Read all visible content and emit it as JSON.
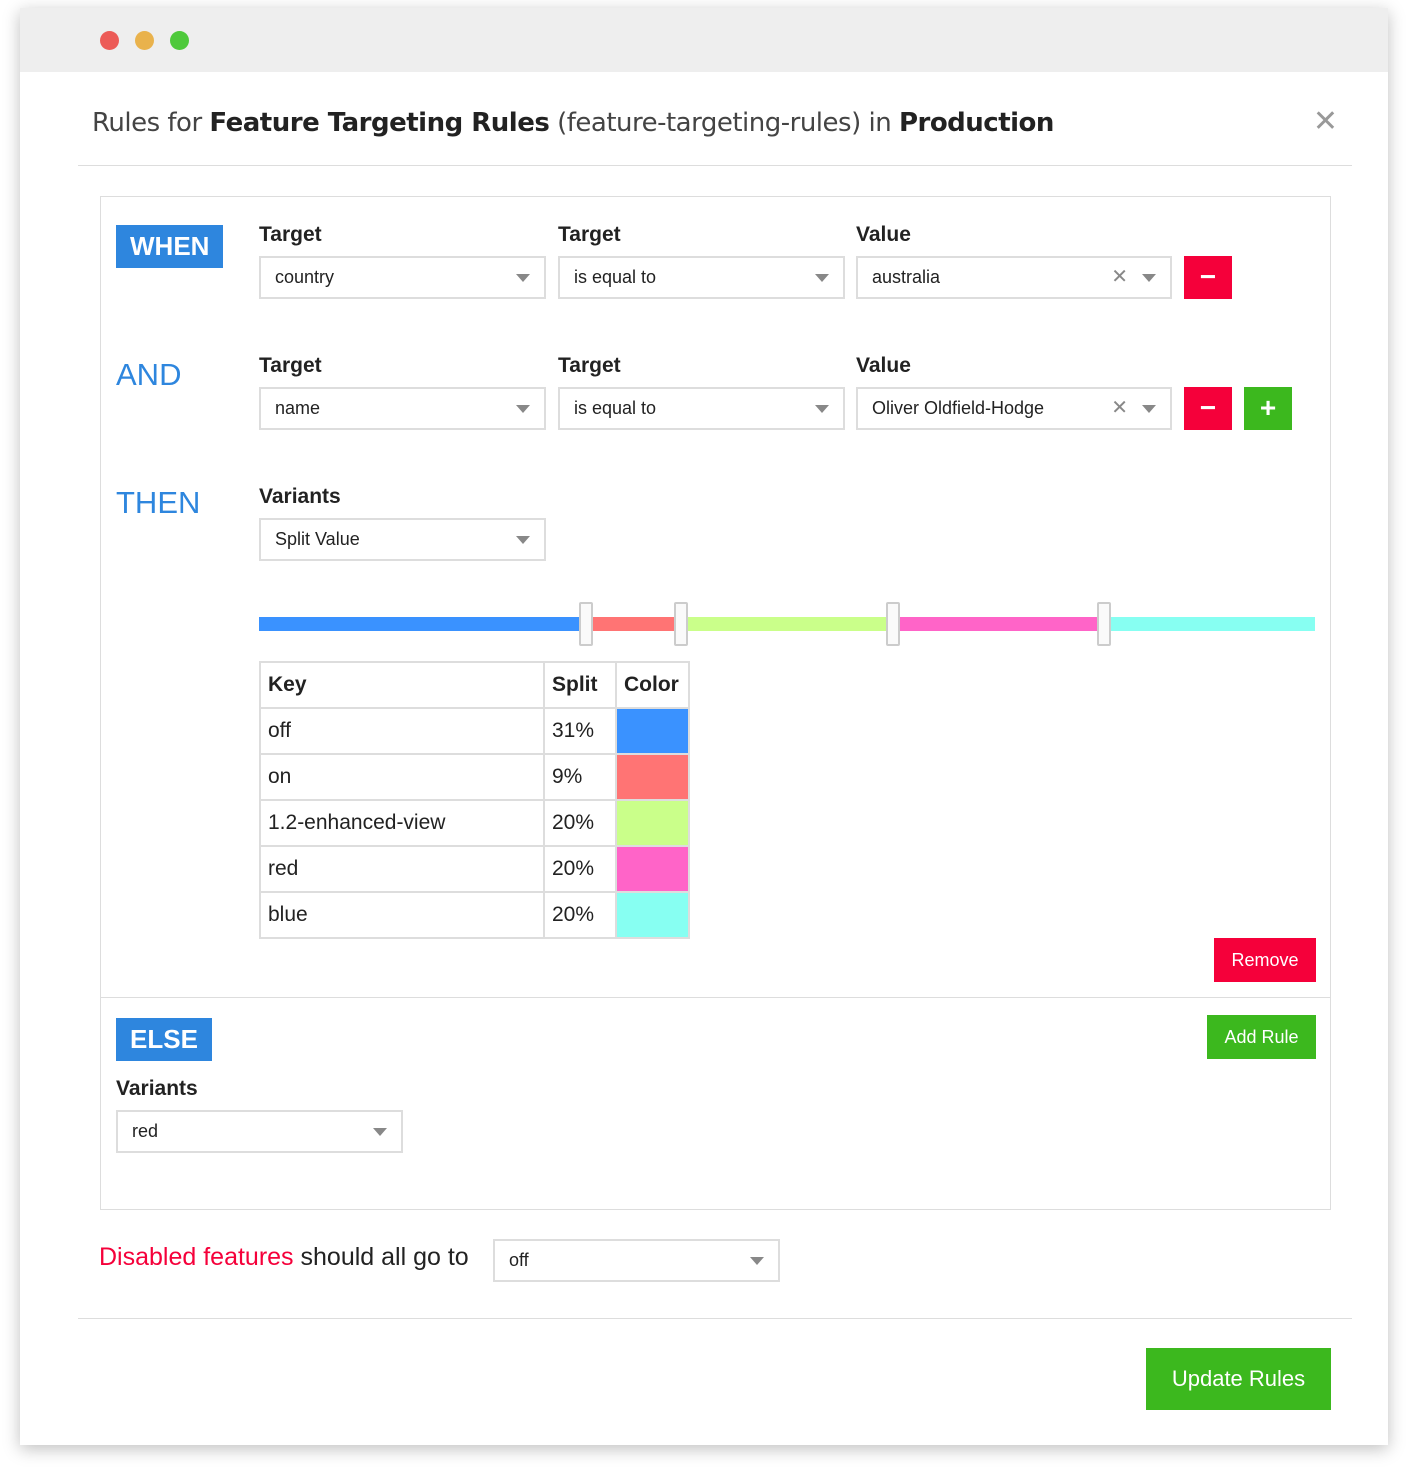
{
  "header": {
    "prefix": "Rules for ",
    "feature_name": "Feature Targeting Rules",
    "feature_key": " (feature-targeting-rules) in ",
    "environment": "Production",
    "close_icon": "close-icon"
  },
  "when": {
    "badge": "WHEN",
    "target_label": "Target",
    "operator_label": "Target",
    "value_label": "Value",
    "target": "country",
    "operator": "is equal to",
    "value": "australia",
    "remove": "−"
  },
  "and": {
    "keyword": "AND",
    "target_label": "Target",
    "operator_label": "Target",
    "value_label": "Value",
    "target": "name",
    "operator": "is equal to",
    "value": "Oliver Oldfield-Hodge",
    "remove": "−",
    "add": "+"
  },
  "then": {
    "keyword": "THEN",
    "variants_label": "Variants",
    "variants": "Split Value",
    "table": {
      "headers": [
        "Key",
        "Split",
        "Color"
      ],
      "rows": [
        {
          "key": "off",
          "split": "31%",
          "color": "#3a92ff"
        },
        {
          "key": "on",
          "split": "9%",
          "color": "#ff7474"
        },
        {
          "key": "1.2-enhanced-view",
          "split": "20%",
          "color": "#caff8a"
        },
        {
          "key": "red",
          "split": "20%",
          "color": "#ff64c8"
        },
        {
          "key": "blue",
          "split": "20%",
          "color": "#87fff2"
        }
      ]
    },
    "split_values": [
      31,
      9,
      20,
      20,
      20
    ],
    "remove": "Remove"
  },
  "else": {
    "badge": "ELSE",
    "add_rule": "Add Rule",
    "variants_label": "Variants",
    "variants": "red"
  },
  "disabled": {
    "highlight": "Disabled features",
    "text": " should all go to",
    "value": "off"
  },
  "update": "Update Rules"
}
